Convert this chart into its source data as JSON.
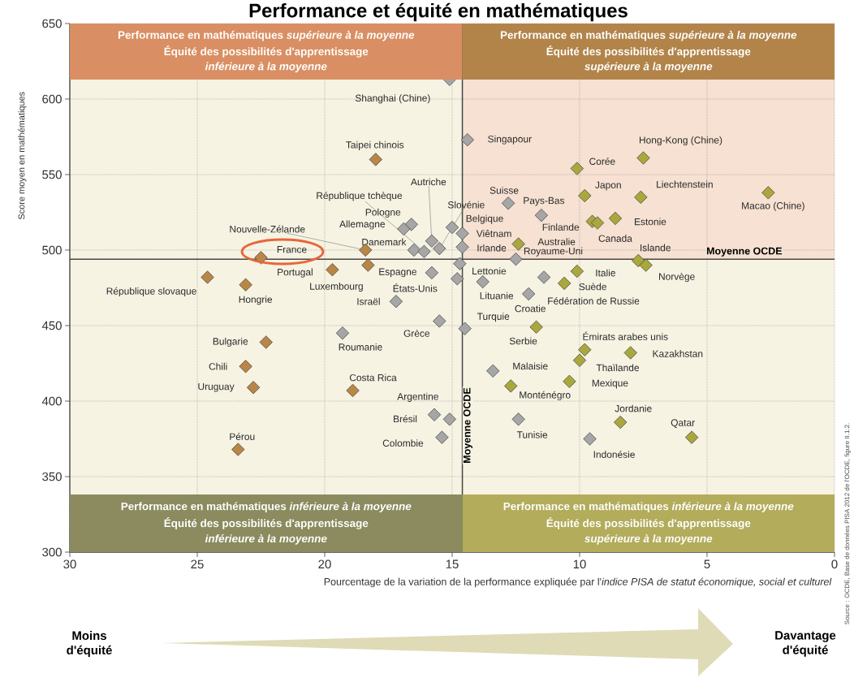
{
  "chart_data": {
    "type": "scatter",
    "title": "Performance et équité en mathématiques",
    "xlabel": "Pourcentage de la variation de la performance expliquée par l'*indice PISA de statut économique, social et culturel*",
    "ylabel": "Score moyen en mathématiques",
    "xlim": [
      30,
      0
    ],
    "ylim": [
      300,
      650
    ],
    "xticks": [
      30,
      25,
      20,
      15,
      10,
      5,
      0
    ],
    "yticks": [
      300,
      350,
      400,
      450,
      500,
      550,
      600,
      650
    ],
    "grid": true,
    "marker": "diamond",
    "ref_lines": [
      {
        "axis": "y",
        "value": 494,
        "label": "Moyenne OCDE"
      },
      {
        "axis": "x",
        "value": 14.6,
        "label": "Moyenne OCDE"
      }
    ],
    "annotations": [
      "Performance en mathématiques *supérieure à la moyenne*",
      "Équité des possibilités d'apprentissage",
      "*inférieure à la moyenne*",
      "Performance en mathématiques *supérieure à la moyenne*",
      "Équité des possibilités d'apprentissage",
      "*supérieure à la moyenne*",
      "Performance en mathématiques *inférieure à la moyenne*",
      "Équité des possibilités d'apprentissage",
      "*inférieure à la moyenne*",
      "Performance en mathématiques *inférieure à la moyenne*",
      "Équité des possibilités d'apprentissage",
      "*supérieure à la moyenne*",
      "Moins d'équité",
      "Davantage d'équité",
      "Source : OCDE, Base de données PISA 2012 de l'OCDE, figure II.1.2."
    ],
    "series": [
      {
        "color": "#a6a6a6",
        "x": [
          15.1,
          14.4,
          16.6,
          16.9,
          16.5,
          16.1,
          15.8,
          15.5,
          15.0,
          14.6,
          14.6,
          15.8,
          14.8,
          14.7,
          17.2,
          15.5,
          19.3,
          15.7,
          15.1,
          15.4,
          12.8,
          11.5,
          12.5,
          13.8,
          12.0,
          11.4,
          14.5,
          13.4,
          12.4,
          9.6
        ],
        "values": [
          613,
          573,
          517,
          514,
          500,
          499,
          506,
          501,
          515,
          511,
          502,
          485,
          481,
          491,
          466,
          453,
          445,
          391,
          388,
          376,
          531,
          523,
          494,
          479,
          471,
          482,
          448,
          420,
          388,
          375
        ],
        "value_labels": [
          "Shanghai (Chine)",
          "Singapour",
          "Pologne",
          "Allemagne",
          "Danemark",
          "République tchèque",
          "Autriche",
          "Slovénie",
          "Belgique",
          "Viêtnam",
          "Irlande",
          "Espagne",
          "États-Unis",
          "Lettonie",
          "Israël",
          "Grèce",
          "Roumanie",
          "Brésil",
          "Argentine",
          "Colombie",
          "Suisse",
          "Pays-Bas",
          "Royaume-Uni",
          "Lituanie",
          "Croatie",
          "Fédération de Russie",
          "Turquie",
          "Malaisie",
          "Tunisie",
          "Indonésie"
        ]
      },
      {
        "color": "#b98646",
        "x": [
          18.0,
          22.5,
          18.4,
          19.7,
          18.3,
          24.6,
          23.1,
          22.3,
          23.1,
          22.8,
          18.9,
          23.4
        ],
        "values": [
          560,
          495,
          500,
          487,
          490,
          482,
          477,
          439,
          423,
          409,
          407,
          368
        ],
        "value_labels": [
          "Taipei chinois",
          "France",
          "Nouvelle-Zélande",
          "Portugal",
          "Luxembourg",
          "République slovaque",
          "Hongrie",
          "Bulgarie",
          "Chili",
          "Uruguay",
          "Costa Rica",
          "Pérou"
        ]
      },
      {
        "color": "#aaa83c",
        "x": [
          7.5,
          10.1,
          9.8,
          7.6,
          2.6,
          9.5,
          9.3,
          8.6,
          12.4,
          10.1,
          10.6,
          7.7,
          7.4,
          11.7,
          9.8,
          10.0,
          8.0,
          10.4,
          12.7,
          8.4,
          5.6
        ],
        "values": [
          561,
          554,
          536,
          535,
          538,
          519,
          518,
          521,
          504,
          486,
          478,
          493,
          490,
          449,
          434,
          427,
          432,
          413,
          410,
          386,
          376
        ],
        "value_labels": [
          "Hong-Kong (Chine)",
          "Corée",
          "Japon",
          "Liechtenstein",
          "Macao (Chine)",
          "Finlande",
          "Canada",
          "Estonie",
          "Australie",
          "Italie",
          "Suède",
          "Islande",
          "Norvège",
          "Serbie",
          "Émirats arabes unis",
          "Thaïlande",
          "Kazakhstan",
          "Mexique",
          "Monténégro",
          "Jordanie",
          "Qatar"
        ]
      }
    ]
  }
}
